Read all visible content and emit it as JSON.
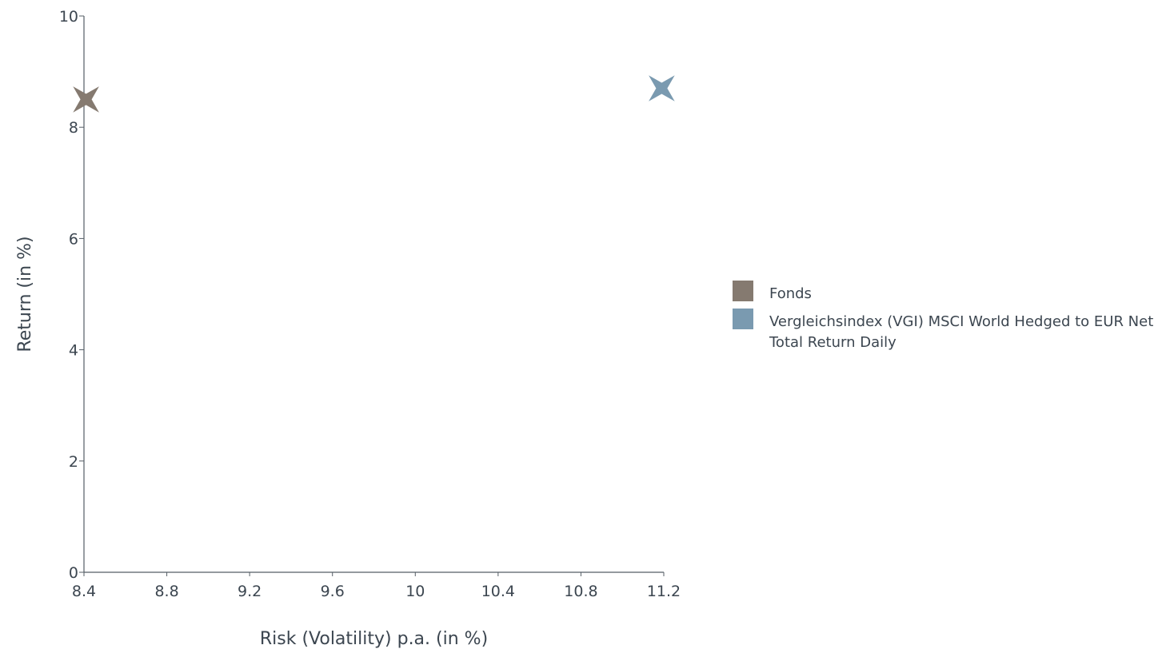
{
  "chart_data": {
    "type": "scatter",
    "title": "",
    "xlabel": "Risk (Volatility) p.a. (in %)",
    "ylabel": "Return (in %)",
    "xlim": [
      8.4,
      11.2
    ],
    "ylim": [
      0,
      10
    ],
    "x_ticks": [
      "8.4",
      "8.8",
      "9.2",
      "9.6",
      "10",
      "10.4",
      "10.8",
      "11.2"
    ],
    "y_ticks": [
      "0",
      "2",
      "4",
      "6",
      "8",
      "10"
    ],
    "grid": false,
    "legend_position": "right",
    "marker": "four-point-star",
    "series": [
      {
        "name": "Fonds",
        "color": "#857a70",
        "x": [
          8.41
        ],
        "y": [
          8.5
        ]
      },
      {
        "name": "Vergleichsindex (VGI) MSCI World Hedged to EUR Net Total Return Daily",
        "color": "#7a9ab0",
        "x": [
          11.19
        ],
        "y": [
          8.7
        ]
      }
    ]
  }
}
